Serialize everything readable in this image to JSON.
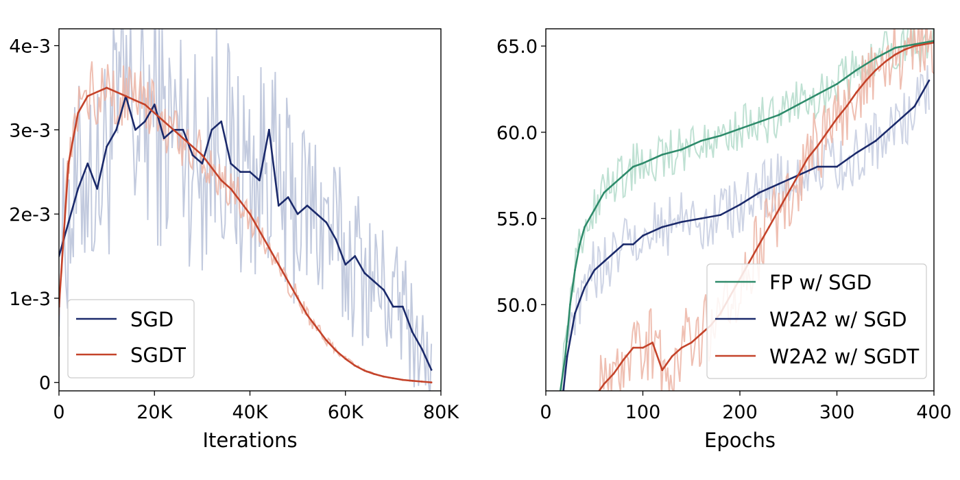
{
  "chart_data": [
    {
      "type": "line",
      "xlabel": "Iterations",
      "ylabel": "",
      "xlim": [
        0,
        80000
      ],
      "ylim": [
        -0.0001,
        0.0042
      ],
      "xticks": [
        0,
        20000,
        40000,
        60000,
        80000
      ],
      "xtick_labels": [
        "0",
        "20K",
        "40K",
        "60K",
        "80K"
      ],
      "yticks": [
        0,
        0.001,
        0.002,
        0.003,
        0.004
      ],
      "ytick_labels": [
        "0",
        "1e-3",
        "2e-3",
        "3e-3",
        "4e-3"
      ],
      "grid": false,
      "legend_position": "lower-left",
      "series": [
        {
          "name": "SGD",
          "color": "#1b2a6b",
          "raw_color": "#b7c1d8",
          "x": [
            0,
            2000,
            4000,
            6000,
            8000,
            10000,
            12000,
            14000,
            16000,
            18000,
            20000,
            22000,
            24000,
            26000,
            28000,
            30000,
            32000,
            34000,
            36000,
            38000,
            40000,
            42000,
            44000,
            46000,
            48000,
            50000,
            52000,
            54000,
            56000,
            58000,
            60000,
            62000,
            64000,
            66000,
            68000,
            70000,
            72000,
            74000,
            76000,
            78000
          ],
          "values": [
            0.0015,
            0.0019,
            0.0023,
            0.0026,
            0.0023,
            0.0028,
            0.003,
            0.0034,
            0.003,
            0.0031,
            0.0033,
            0.0029,
            0.003,
            0.003,
            0.0027,
            0.0026,
            0.003,
            0.0031,
            0.0026,
            0.0025,
            0.0025,
            0.0024,
            0.003,
            0.0021,
            0.0022,
            0.002,
            0.0021,
            0.002,
            0.0019,
            0.0017,
            0.0014,
            0.0015,
            0.0013,
            0.0012,
            0.0011,
            0.0009,
            0.0009,
            0.0006,
            0.0004,
            0.00015
          ]
        },
        {
          "name": "SGDT",
          "color": "#c4432a",
          "raw_color": "#ecb4a4",
          "x": [
            0,
            2000,
            4000,
            6000,
            8000,
            10000,
            12000,
            14000,
            16000,
            18000,
            20000,
            22000,
            24000,
            26000,
            28000,
            30000,
            32000,
            34000,
            36000,
            38000,
            40000,
            42000,
            44000,
            46000,
            48000,
            50000,
            52000,
            54000,
            56000,
            58000,
            60000,
            62000,
            64000,
            66000,
            68000,
            70000,
            72000,
            74000,
            76000,
            78000
          ],
          "values": [
            0.0009,
            0.0026,
            0.0032,
            0.0034,
            0.00345,
            0.0035,
            0.00345,
            0.0034,
            0.00335,
            0.0033,
            0.0032,
            0.0031,
            0.003,
            0.0029,
            0.0028,
            0.0027,
            0.00255,
            0.0024,
            0.0023,
            0.00215,
            0.002,
            0.0018,
            0.0016,
            0.0014,
            0.0012,
            0.001,
            0.0008,
            0.00065,
            0.0005,
            0.00038,
            0.00028,
            0.0002,
            0.00014,
            0.0001,
            7e-05,
            5e-05,
            3e-05,
            2e-05,
            1e-05,
            0.0
          ]
        }
      ]
    },
    {
      "type": "line",
      "xlabel": "Epochs",
      "ylabel": "",
      "xlim": [
        0,
        400
      ],
      "ylim": [
        45,
        66
      ],
      "xticks": [
        0,
        100,
        200,
        300,
        400
      ],
      "xtick_labels": [
        "0",
        "100",
        "200",
        "300",
        "400"
      ],
      "yticks": [
        50,
        55,
        60,
        65
      ],
      "ytick_labels": [
        "50.0",
        "55.0",
        "60.0",
        "65.0"
      ],
      "grid": false,
      "legend_position": "lower-right",
      "series": [
        {
          "name": "FP w/ SGD",
          "color": "#2e8b6b",
          "raw_color": "#b4dccb",
          "x": [
            15,
            20,
            25,
            30,
            35,
            40,
            50,
            60,
            70,
            80,
            90,
            100,
            120,
            140,
            160,
            180,
            200,
            220,
            240,
            260,
            280,
            300,
            320,
            340,
            360,
            380,
            400
          ],
          "values": [
            45.0,
            47.0,
            50.0,
            52.0,
            53.5,
            54.5,
            55.5,
            56.5,
            57.0,
            57.5,
            58.0,
            58.2,
            58.7,
            59.0,
            59.5,
            59.8,
            60.2,
            60.6,
            61.0,
            61.6,
            62.2,
            62.8,
            63.6,
            64.3,
            64.9,
            65.1,
            65.3
          ]
        },
        {
          "name": "W2A2 w/ SGD",
          "color": "#1b2a6b",
          "raw_color": "#c6cde0",
          "x": [
            18,
            22,
            30,
            40,
            50,
            60,
            70,
            80,
            90,
            100,
            120,
            140,
            160,
            180,
            200,
            220,
            240,
            260,
            280,
            300,
            320,
            340,
            360,
            380,
            395
          ],
          "values": [
            45.0,
            47.0,
            49.5,
            51.0,
            52.0,
            52.5,
            53.0,
            53.5,
            53.5,
            54.0,
            54.5,
            54.8,
            55.0,
            55.2,
            55.8,
            56.5,
            57.0,
            57.5,
            58.0,
            58.0,
            58.8,
            59.5,
            60.5,
            61.5,
            63.0
          ]
        },
        {
          "name": "W2A2 w/ SGDT",
          "color": "#c4432a",
          "raw_color": "#ecb4a4",
          "x": [
            55,
            60,
            70,
            80,
            90,
            100,
            110,
            120,
            130,
            140,
            150,
            160,
            170,
            180,
            190,
            200,
            210,
            220,
            230,
            240,
            250,
            260,
            270,
            280,
            290,
            300,
            310,
            320,
            330,
            340,
            350,
            360,
            370,
            380,
            390,
            400
          ],
          "values": [
            45.0,
            45.4,
            46.0,
            46.8,
            47.5,
            47.5,
            47.8,
            46.2,
            47.0,
            47.5,
            47.8,
            48.3,
            48.8,
            49.5,
            50.5,
            51.5,
            52.5,
            53.5,
            54.5,
            55.5,
            56.5,
            57.5,
            58.5,
            59.2,
            60.0,
            60.8,
            61.5,
            62.3,
            63.0,
            63.6,
            64.1,
            64.5,
            64.8,
            65.0,
            65.1,
            65.2
          ]
        }
      ]
    }
  ]
}
